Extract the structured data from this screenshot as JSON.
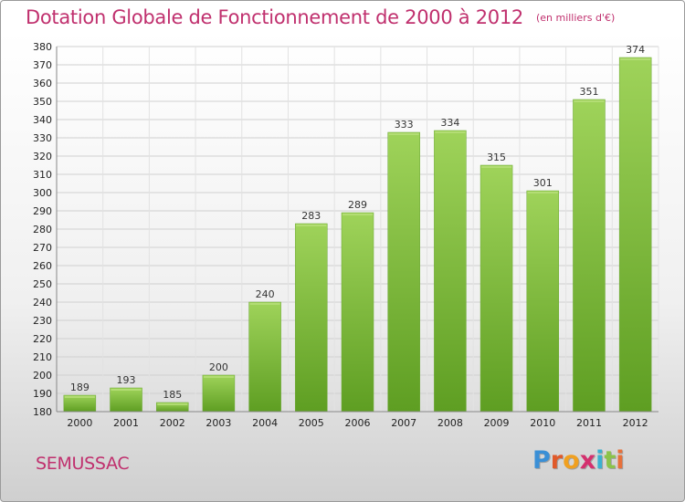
{
  "title": "Dotation Globale de Fonctionnement de 2000 à 2012",
  "subtitle": "(en milliers d'€)",
  "commune": "SEMUSSAC",
  "logo": {
    "letters": [
      "P",
      "r",
      "o",
      "x",
      "i",
      "t",
      "i"
    ],
    "colors": [
      "#3a8fd6",
      "#e05a2a",
      "#f0a020",
      "#d4306e",
      "#3ab0d0",
      "#8bc34a",
      "#e8703a"
    ]
  },
  "colors": {
    "bar": "#7fc241",
    "bar_dark": "#5e9e22",
    "title": "#c0306e"
  },
  "chart_data": {
    "type": "bar",
    "categories": [
      "2000",
      "2001",
      "2002",
      "2003",
      "2004",
      "2005",
      "2006",
      "2007",
      "2008",
      "2009",
      "2010",
      "2011",
      "2012"
    ],
    "values": [
      189,
      193,
      185,
      200,
      240,
      283,
      289,
      333,
      334,
      315,
      301,
      351,
      374
    ],
    "ylim": [
      180,
      380
    ],
    "yticks": [
      180,
      190,
      200,
      210,
      220,
      230,
      240,
      250,
      260,
      270,
      280,
      290,
      300,
      310,
      320,
      330,
      340,
      350,
      360,
      370,
      380
    ],
    "grid": true,
    "data_labels": true
  }
}
